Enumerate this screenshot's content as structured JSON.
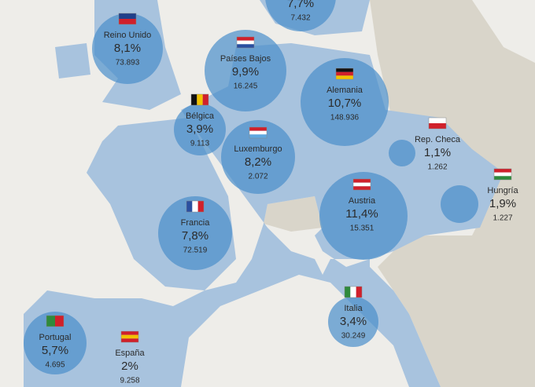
{
  "countries": [
    {
      "percent": "7,7%",
      "count": "7.432"
    },
    {
      "name": "Reino Unido",
      "percent": "8,1%",
      "count": "73.893"
    },
    {
      "name": "Países Bajos",
      "percent": "9,9%",
      "count": "16.245"
    },
    {
      "name": "Alemania",
      "percent": "10,7%",
      "count": "148.936"
    },
    {
      "name": "Bélgica",
      "percent": "3,9%",
      "count": "9.113"
    },
    {
      "name": "Luxemburgo",
      "percent": "8,2%",
      "count": "2.072"
    },
    {
      "name": "Rep. Checa",
      "percent": "1,1%",
      "count": "1.262"
    },
    {
      "name": "Hungría",
      "percent": "1,9%",
      "count": "1.227"
    },
    {
      "name": "Austria",
      "percent": "11,4%",
      "count": "15.351"
    },
    {
      "name": "Francia",
      "percent": "7,8%",
      "count": "72.519"
    },
    {
      "name": "Italia",
      "percent": "3,4%",
      "count": "30.249"
    },
    {
      "name": "Portugal",
      "percent": "5,7%",
      "count": "4.695"
    },
    {
      "name": "España",
      "percent": "2%",
      "count": "9.258"
    }
  ]
}
